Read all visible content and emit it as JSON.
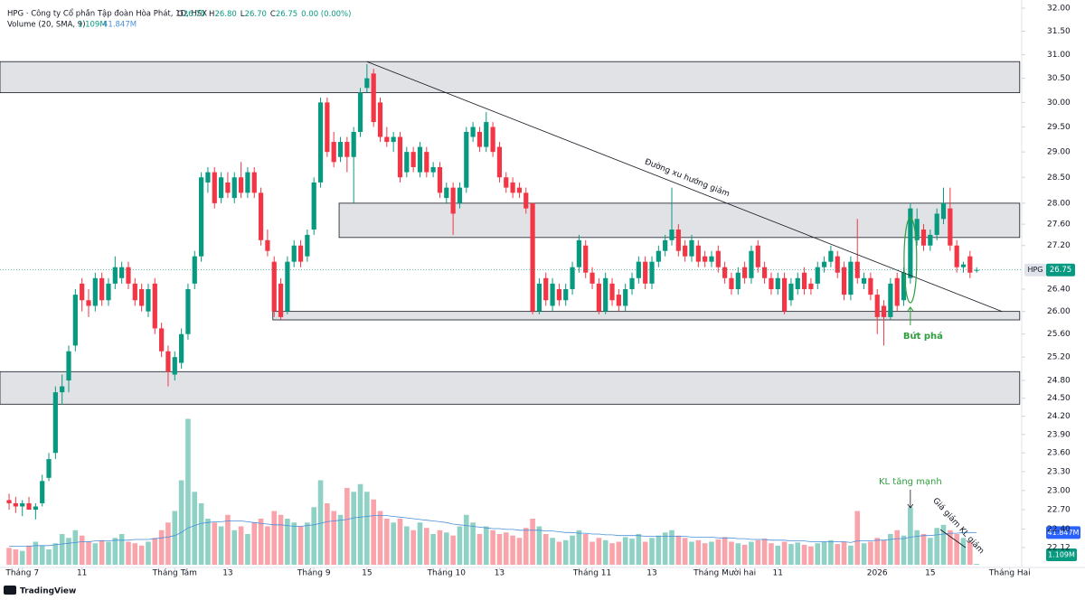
{
  "header": {
    "symbol": "HPG · Công ty Cổ phần Tập đoàn Hòa Phát, 1D, HSX",
    "ohlc": [
      {
        "label": "O",
        "value": "26.75"
      },
      {
        "label": "H",
        "value": "26.80"
      },
      {
        "label": "L",
        "value": "26.70"
      },
      {
        "label": "C",
        "value": "26.75"
      }
    ],
    "change": "0.00 (0.00%)",
    "volume_title": "Volume (20, SMA, 9)"
  },
  "chart_data": {
    "type": "candlestick",
    "log": true,
    "grid": false,
    "up_color": "#089981",
    "down_color": "#f23645",
    "sma_color": "#4a8fd9",
    "xlim": [
      -1.37,
      152.8
    ],
    "xticks": [
      {
        "value": 2,
        "label": "Tháng 7"
      },
      {
        "value": 11,
        "label": "11"
      },
      {
        "value": 25,
        "label": "Tháng Tám"
      },
      {
        "value": 33,
        "label": "13"
      },
      {
        "value": 46,
        "label": "Tháng 9"
      },
      {
        "value": 54,
        "label": "15"
      },
      {
        "value": 66,
        "label": "Tháng 10"
      },
      {
        "value": 74,
        "label": "13"
      },
      {
        "value": 88,
        "label": "Tháng 11"
      },
      {
        "value": 97,
        "label": "13"
      },
      {
        "value": 108,
        "label": "Tháng Mười hai"
      },
      {
        "value": 116,
        "label": "11"
      },
      {
        "value": 131,
        "label": "2026"
      },
      {
        "value": 139,
        "label": "15"
      },
      {
        "value": 151,
        "label": "Tháng Hai"
      }
    ],
    "ylim": [
      21.86,
      32.08
    ],
    "yticks": [
      {
        "value": 32,
        "label": "32.00"
      },
      {
        "value": 31.5,
        "label": "31.50"
      },
      {
        "value": 31,
        "label": "31.00"
      },
      {
        "value": 30.5,
        "label": "30.50"
      },
      {
        "value": 30,
        "label": "30.00"
      },
      {
        "value": 29.5,
        "label": "29.50"
      },
      {
        "value": 29,
        "label": "29.00"
      },
      {
        "value": 28.5,
        "label": "28.50"
      },
      {
        "value": 28,
        "label": "28.00"
      },
      {
        "value": 27.6,
        "label": "27.60"
      },
      {
        "value": 27.2,
        "label": "27.20"
      },
      {
        "value": 26.4,
        "label": "26.40"
      },
      {
        "value": 26,
        "label": "26.00"
      },
      {
        "value": 25.6,
        "label": "25.60"
      },
      {
        "value": 25.2,
        "label": "25.20"
      },
      {
        "value": 24.8,
        "label": "24.80"
      },
      {
        "value": 24.5,
        "label": "24.50"
      },
      {
        "value": 24.2,
        "label": "24.20"
      },
      {
        "value": 23.9,
        "label": "23.90"
      },
      {
        "value": 23.6,
        "label": "23.60"
      },
      {
        "value": 23.3,
        "label": "23.30"
      },
      {
        "value": 23,
        "label": "23.00"
      },
      {
        "value": 22.7,
        "label": "22.70"
      },
      {
        "value": 22.4,
        "label": "22.40"
      },
      {
        "value": 22.12,
        "label": "22.12"
      }
    ],
    "symbol": "HPG",
    "candles": [
      [
        22.85,
        22.95,
        22.7,
        22.8
      ],
      [
        22.8,
        22.9,
        22.65,
        22.75
      ],
      [
        22.75,
        22.85,
        22.6,
        22.8
      ],
      [
        22.8,
        22.9,
        22.7,
        22.7
      ],
      [
        22.7,
        22.8,
        22.55,
        22.75
      ],
      [
        22.8,
        23.25,
        22.75,
        23.15
      ],
      [
        23.2,
        23.6,
        23.15,
        23.5
      ],
      [
        23.6,
        24.7,
        23.5,
        24.6
      ],
      [
        24.6,
        24.9,
        24.4,
        24.7
      ],
      [
        24.8,
        25.4,
        24.6,
        25.3
      ],
      [
        25.4,
        26.4,
        25.3,
        26.3
      ],
      [
        26.5,
        26.6,
        26.0,
        26.2
      ],
      [
        26.2,
        26.4,
        25.9,
        26.1
      ],
      [
        26.1,
        26.7,
        26.0,
        26.6
      ],
      [
        26.6,
        26.7,
        26.1,
        26.2
      ],
      [
        26.2,
        26.6,
        26.1,
        26.5
      ],
      [
        26.5,
        27.0,
        26.4,
        26.8
      ],
      [
        26.6,
        26.9,
        26.5,
        26.8
      ],
      [
        26.8,
        26.9,
        26.4,
        26.5
      ],
      [
        26.5,
        26.6,
        26.1,
        26.2
      ],
      [
        26.4,
        26.5,
        26.0,
        26.1
      ],
      [
        26.0,
        26.5,
        25.9,
        26.4
      ],
      [
        26.5,
        26.6,
        25.6,
        25.7
      ],
      [
        25.7,
        25.8,
        25.2,
        25.3
      ],
      [
        25.3,
        25.4,
        24.7,
        24.95
      ],
      [
        24.9,
        25.3,
        24.8,
        25.2
      ],
      [
        25.1,
        25.7,
        25.0,
        25.6
      ],
      [
        25.6,
        26.5,
        25.5,
        26.4
      ],
      [
        26.5,
        27.1,
        26.4,
        27.0
      ],
      [
        27.0,
        28.6,
        26.9,
        28.5
      ],
      [
        28.4,
        28.7,
        28.2,
        28.6
      ],
      [
        28.6,
        28.7,
        27.9,
        28.0
      ],
      [
        28.1,
        28.6,
        28.0,
        28.5
      ],
      [
        28.4,
        28.6,
        28.1,
        28.2
      ],
      [
        28.1,
        28.6,
        28.0,
        28.5
      ],
      [
        28.5,
        28.8,
        28.1,
        28.2
      ],
      [
        28.2,
        28.7,
        28.1,
        28.6
      ],
      [
        28.6,
        28.7,
        28.1,
        28.2
      ],
      [
        28.2,
        28.3,
        27.2,
        27.3
      ],
      [
        27.3,
        27.5,
        27.0,
        27.1
      ],
      [
        26.9,
        27.0,
        25.9,
        26.0
      ],
      [
        26.5,
        26.6,
        25.85,
        25.9
      ],
      [
        26.0,
        27.0,
        25.95,
        26.9
      ],
      [
        26.9,
        27.3,
        26.8,
        27.2
      ],
      [
        27.2,
        27.3,
        26.8,
        26.9
      ],
      [
        27.0,
        27.5,
        26.9,
        27.4
      ],
      [
        27.5,
        28.5,
        27.4,
        28.4
      ],
      [
        28.4,
        30.1,
        28.3,
        30.0
      ],
      [
        30.0,
        30.1,
        28.9,
        29.0
      ],
      [
        29.2,
        29.4,
        28.7,
        28.8
      ],
      [
        28.9,
        29.3,
        28.8,
        29.2
      ],
      [
        29.2,
        29.3,
        28.6,
        28.9
      ],
      [
        28.9,
        29.5,
        28.0,
        29.4
      ],
      [
        29.4,
        30.3,
        29.3,
        30.2
      ],
      [
        30.3,
        30.8,
        30.2,
        30.5
      ],
      [
        30.6,
        30.7,
        29.5,
        29.6
      ],
      [
        30.0,
        30.1,
        29.2,
        29.3
      ],
      [
        29.3,
        29.5,
        29.1,
        29.2
      ],
      [
        29.2,
        29.4,
        29.0,
        29.3
      ],
      [
        29.3,
        29.4,
        28.4,
        28.5
      ],
      [
        28.6,
        29.1,
        28.5,
        29.0
      ],
      [
        29.0,
        29.1,
        28.6,
        28.7
      ],
      [
        28.6,
        29.2,
        28.5,
        29.1
      ],
      [
        29.0,
        29.1,
        28.5,
        28.6
      ],
      [
        28.6,
        28.8,
        28.5,
        28.7
      ],
      [
        28.7,
        28.8,
        28.1,
        28.2
      ],
      [
        28.1,
        28.4,
        28.0,
        28.3
      ],
      [
        28.3,
        28.4,
        27.4,
        27.8
      ],
      [
        28.0,
        28.4,
        27.9,
        28.3
      ],
      [
        28.3,
        29.5,
        28.2,
        29.4
      ],
      [
        29.3,
        29.6,
        29.2,
        29.5
      ],
      [
        29.4,
        29.5,
        29.0,
        29.1
      ],
      [
        29.1,
        29.8,
        29.0,
        29.6
      ],
      [
        29.5,
        29.6,
        28.9,
        29.0
      ],
      [
        29.1,
        29.2,
        28.4,
        28.5
      ],
      [
        28.5,
        28.6,
        28.2,
        28.3
      ],
      [
        28.4,
        28.5,
        28.1,
        28.2
      ],
      [
        28.3,
        28.4,
        28.1,
        28.2
      ],
      [
        28.2,
        28.3,
        27.8,
        27.9
      ],
      [
        28.0,
        28.0,
        25.95,
        26.0
      ],
      [
        26.0,
        26.6,
        25.95,
        26.5
      ],
      [
        26.6,
        26.7,
        26.1,
        26.2
      ],
      [
        26.1,
        26.6,
        26.0,
        26.5
      ],
      [
        26.4,
        26.5,
        26.1,
        26.2
      ],
      [
        26.2,
        26.5,
        26.1,
        26.4
      ],
      [
        26.4,
        26.9,
        26.3,
        26.8
      ],
      [
        26.8,
        27.4,
        26.7,
        27.3
      ],
      [
        27.2,
        27.3,
        26.6,
        26.7
      ],
      [
        26.7,
        26.8,
        26.4,
        26.5
      ],
      [
        26.5,
        26.6,
        25.95,
        26.0
      ],
      [
        26.0,
        26.7,
        25.95,
        26.6
      ],
      [
        26.5,
        26.6,
        26.1,
        26.2
      ],
      [
        26.3,
        26.4,
        26.0,
        26.1
      ],
      [
        26.1,
        26.5,
        26.0,
        26.4
      ],
      [
        26.4,
        26.7,
        26.3,
        26.6
      ],
      [
        26.6,
        27.0,
        26.5,
        26.9
      ],
      [
        26.9,
        27.0,
        26.4,
        26.5
      ],
      [
        26.5,
        27.0,
        26.4,
        26.9
      ],
      [
        26.9,
        27.2,
        26.8,
        27.1
      ],
      [
        27.1,
        27.4,
        27.0,
        27.3
      ],
      [
        27.3,
        28.3,
        27.2,
        27.5
      ],
      [
        27.5,
        27.6,
        27.0,
        27.1
      ],
      [
        27.2,
        27.3,
        26.9,
        27.0
      ],
      [
        27.0,
        27.4,
        26.9,
        27.3
      ],
      [
        27.2,
        27.3,
        26.8,
        26.9
      ],
      [
        27.0,
        27.1,
        26.8,
        26.9
      ],
      [
        26.9,
        27.1,
        26.8,
        27.0
      ],
      [
        27.1,
        27.2,
        26.7,
        26.8
      ],
      [
        26.8,
        26.9,
        26.5,
        26.6
      ],
      [
        26.6,
        26.7,
        26.3,
        26.4
      ],
      [
        26.4,
        26.8,
        26.3,
        26.7
      ],
      [
        26.8,
        26.9,
        26.5,
        26.6
      ],
      [
        26.6,
        27.2,
        26.5,
        27.1
      ],
      [
        27.2,
        27.3,
        26.7,
        26.8
      ],
      [
        26.8,
        26.9,
        26.5,
        26.6
      ],
      [
        26.6,
        26.7,
        26.3,
        26.4
      ],
      [
        26.4,
        26.7,
        26.3,
        26.6
      ],
      [
        26.6,
        26.7,
        25.95,
        26.0
      ],
      [
        26.2,
        26.6,
        26.1,
        26.5
      ],
      [
        26.4,
        26.7,
        26.3,
        26.6
      ],
      [
        26.7,
        26.8,
        26.3,
        26.4
      ],
      [
        26.5,
        26.6,
        26.3,
        26.4
      ],
      [
        26.5,
        26.9,
        26.4,
        26.8
      ],
      [
        26.8,
        27.0,
        26.7,
        26.9
      ],
      [
        26.9,
        27.2,
        26.8,
        27.1
      ],
      [
        27.0,
        27.1,
        26.6,
        26.7
      ],
      [
        26.8,
        26.9,
        26.2,
        26.3
      ],
      [
        26.3,
        27.0,
        26.2,
        26.9
      ],
      [
        26.9,
        27.7,
        26.5,
        26.6
      ],
      [
        26.5,
        26.7,
        26.4,
        26.6
      ],
      [
        26.6,
        26.7,
        26.2,
        26.3
      ],
      [
        26.3,
        26.4,
        25.6,
        25.9
      ],
      [
        26.1,
        26.2,
        25.4,
        25.9
      ],
      [
        25.9,
        26.6,
        25.85,
        26.5
      ],
      [
        26.6,
        26.7,
        26.0,
        26.1
      ],
      [
        26.2,
        26.8,
        26.1,
        26.7
      ],
      [
        26.6,
        28.0,
        26.5,
        27.9
      ],
      [
        27.3,
        27.9,
        27.2,
        27.7
      ],
      [
        27.5,
        27.6,
        27.1,
        27.2
      ],
      [
        27.2,
        27.5,
        27.1,
        27.4
      ],
      [
        27.4,
        27.9,
        27.3,
        27.8
      ],
      [
        27.7,
        28.3,
        27.6,
        28.0
      ],
      [
        27.9,
        28.3,
        27.1,
        27.2
      ],
      [
        27.2,
        27.3,
        26.7,
        26.8
      ],
      [
        26.8,
        26.9,
        26.7,
        26.85
      ],
      [
        27.0,
        27.1,
        26.6,
        26.7
      ],
      [
        26.75,
        26.8,
        26.7,
        26.75
      ]
    ],
    "volume_lim": [
      0,
      200
    ],
    "volume": [
      22,
      20,
      18,
      25,
      30,
      25,
      20,
      28,
      40,
      35,
      45,
      38,
      30,
      28,
      32,
      30,
      35,
      40,
      30,
      28,
      25,
      30,
      35,
      45,
      55,
      70,
      110,
      190,
      95,
      80,
      60,
      55,
      50,
      65,
      45,
      50,
      40,
      55,
      60,
      50,
      70,
      65,
      60,
      55,
      50,
      55,
      75,
      110,
      80,
      70,
      65,
      100,
      95,
      105,
      95,
      85,
      70,
      60,
      55,
      60,
      50,
      45,
      55,
      48,
      40,
      45,
      42,
      38,
      50,
      65,
      55,
      40,
      50,
      45,
      40,
      42,
      38,
      35,
      48,
      60,
      50,
      40,
      35,
      30,
      32,
      38,
      45,
      40,
      30,
      35,
      32,
      28,
      30,
      36,
      34,
      40,
      30,
      35,
      38,
      42,
      45,
      38,
      35,
      30,
      32,
      28,
      30,
      33,
      36,
      30,
      28,
      26,
      30,
      32,
      34,
      28,
      25,
      30,
      27,
      29,
      26,
      24,
      28,
      30,
      32,
      27,
      30,
      25,
      70,
      28,
      30,
      35,
      32,
      40,
      45,
      38,
      75,
      45,
      40,
      35,
      48,
      52,
      45,
      40,
      35,
      30,
      1.109
    ],
    "volume_sma": [
      24,
      24,
      24,
      24,
      25,
      25,
      25,
      26,
      27,
      28,
      29,
      30,
      30,
      31,
      31,
      31,
      32,
      32,
      32,
      33,
      33,
      33,
      34,
      35,
      36,
      38,
      42,
      48,
      51,
      54,
      55,
      56,
      56,
      57,
      57,
      57,
      56,
      55,
      54,
      53,
      52,
      52,
      51,
      50,
      50,
      51,
      52,
      54,
      56,
      57,
      58,
      59,
      61,
      62,
      63,
      64,
      64,
      64,
      63,
      62,
      61,
      60,
      59,
      58,
      57,
      56,
      55,
      53,
      52,
      51,
      50,
      49,
      48,
      47,
      47,
      46,
      46,
      45,
      45,
      45,
      45,
      44,
      44,
      43,
      42,
      42,
      41,
      41,
      40,
      40,
      39,
      39,
      38,
      38,
      38,
      38,
      37,
      37,
      37,
      37,
      37,
      37,
      37,
      36,
      36,
      36,
      36,
      35,
      35,
      35,
      34,
      34,
      33,
      33,
      33,
      32,
      32,
      32,
      31,
      31,
      31,
      30,
      30,
      30,
      30,
      30,
      30,
      29,
      31,
      31,
      31,
      32,
      32,
      33,
      34,
      34,
      36,
      37,
      38,
      38,
      39,
      40,
      41,
      41,
      42,
      42,
      41.847
    ],
    "volume_label": "1.109M",
    "volume_sma_label": "41.847M",
    "zones": [
      {
        "x": [
          -1.37,
          152.5
        ],
        "y": [
          30.2,
          30.85
        ]
      },
      {
        "x": [
          49.8,
          152.5
        ],
        "y": [
          27.35,
          28.0
        ]
      },
      {
        "x": [
          39.8,
          152.5
        ],
        "y": [
          25.85,
          26.0
        ]
      },
      {
        "x": [
          -1.37,
          152.5
        ],
        "y": [
          24.4,
          24.95
        ]
      }
    ],
    "trendline": {
      "x": [
        54,
        149.8
      ],
      "y": [
        30.85,
        26.0
      ]
    },
    "annotations": {
      "trend": "Đường xu hướng giảm",
      "breakout": "Bứt phá",
      "volume_up": "KL tăng mạnh",
      "price_vol_down": "Giá giảm KL giảm"
    }
  },
  "footer": {
    "brand": "TradingView"
  }
}
